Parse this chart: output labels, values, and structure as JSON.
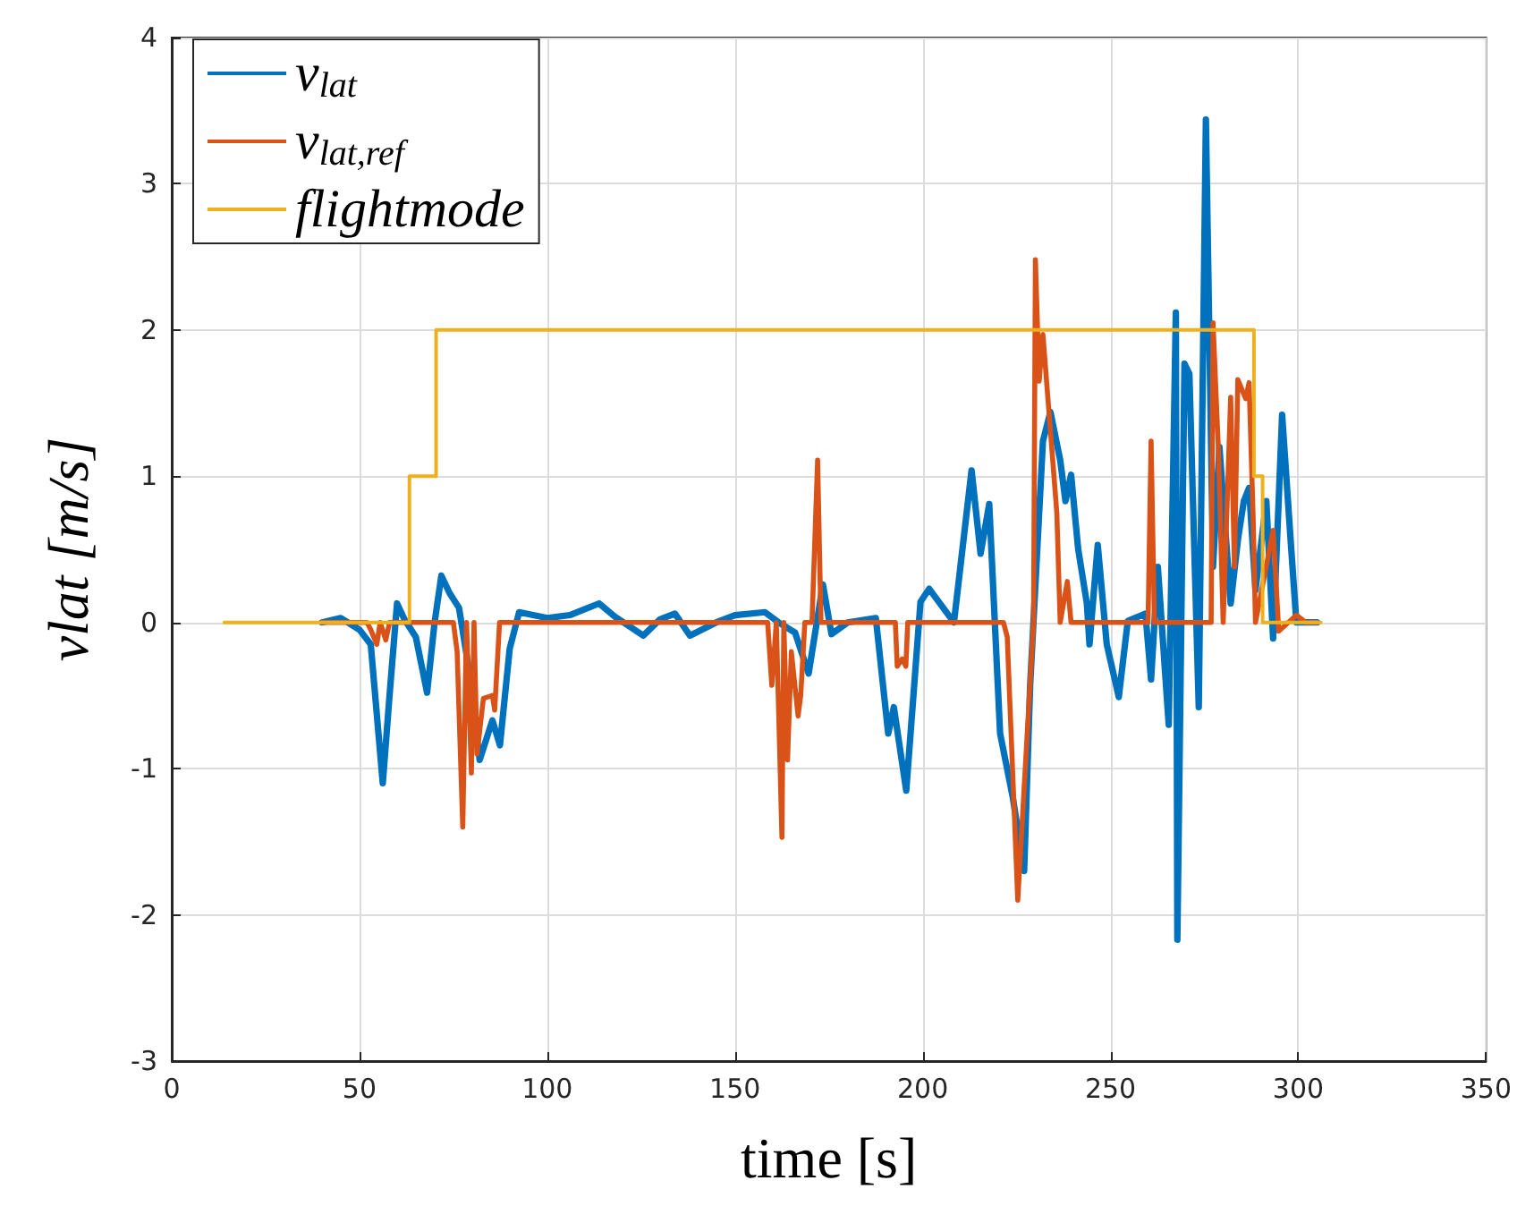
{
  "chart_data": {
    "type": "line",
    "xlabel": "time [s]",
    "ylabel": "vlat [m/s]",
    "xlim": [
      0,
      350
    ],
    "xticks": [
      0,
      50,
      100,
      150,
      200,
      250,
      300,
      350
    ],
    "ylim": [
      -3,
      4
    ],
    "yticks": [
      -3,
      -2,
      -1,
      0,
      1,
      2,
      3,
      4
    ],
    "grid": true,
    "legend": "top left",
    "marker": "none",
    "line_style": "solid",
    "series": [
      {
        "name": "v$_{lat}$",
        "color": "#0072bd",
        "x": [
          40,
          45,
          50,
          53,
          56.2,
          58,
          60,
          62,
          65,
          68,
          70,
          71.8,
          74,
          76.5,
          79,
          82,
          85.4,
          87.4,
          90,
          92.5,
          100,
          106,
          113.8,
          118,
          125.6,
          130,
          134,
          138,
          145,
          150,
          158,
          161.6,
          166,
          169.6,
          173.4,
          175.7,
          180,
          187.5,
          190.8,
          192.3,
          195.6,
          199.4,
          201.7,
          208.3,
          213,
          215.4,
          217.7,
          220.6,
          224,
          227,
          228.6,
          232,
          234,
          236.6,
          238,
          239.5,
          241.4,
          243.7,
          244.4,
          246.6,
          249,
          252.2,
          254.6,
          259.3,
          260.8,
          262.6,
          265.5,
          267.4,
          267.8,
          269.7,
          271,
          273.5,
          275.4,
          277.3,
          279,
          282,
          284,
          285.5,
          286.9,
          288.6,
          291.5,
          293.3,
          295.7,
          298,
          299.5,
          302.8,
          305
        ],
        "values": [
          0,
          0.03,
          -0.05,
          -0.15,
          -1.1,
          -0.5,
          0.13,
          0.02,
          -0.1,
          -0.48,
          0,
          0.32,
          0.2,
          0.1,
          -0.3,
          -0.94,
          -0.67,
          -0.84,
          -0.18,
          0.07,
          0.03,
          0.05,
          0.13,
          0.04,
          -0.09,
          0.02,
          0.06,
          -0.09,
          0,
          0.05,
          0.07,
          0,
          -0.07,
          -0.35,
          0.26,
          -0.08,
          0,
          0.03,
          -0.76,
          -0.58,
          -1.15,
          0.14,
          0.23,
          0,
          1.04,
          0.47,
          0.81,
          -0.76,
          -1.2,
          -1.7,
          -0.43,
          1.24,
          1.44,
          1.11,
          0.83,
          1.01,
          0.5,
          0.13,
          -0.15,
          0.53,
          -0.15,
          -0.51,
          0.01,
          0.06,
          -0.39,
          0.38,
          -0.7,
          2.12,
          -2.17,
          1.77,
          1.7,
          -0.58,
          3.44,
          0.38,
          1.2,
          0.13,
          0.58,
          0.83,
          0.92,
          0.22,
          0.83,
          -0.11,
          1.42,
          0.55,
          0,
          0,
          0
        ]
      },
      {
        "name": "v$_{lat,ref}$",
        "color": "#d95319",
        "x": [
          40,
          52,
          53,
          54.6,
          55.5,
          57,
          58,
          75,
          76,
          77.5,
          78.5,
          79.8,
          80.5,
          81.3,
          83,
          85.4,
          86,
          87.3,
          158.7,
          159.8,
          161,
          162.5,
          163,
          164,
          165,
          166.8,
          167.5,
          168.6,
          170.5,
          172,
          172.9,
          192.7,
          193.2,
          194.5,
          195.5,
          196,
          221.5,
          222.5,
          225.3,
          229.5,
          230,
          231,
          232,
          235.7,
          236.6,
          238.5,
          239.5,
          260,
          260.8,
          261.7,
          276.8,
          277.3,
          278.7,
          280,
          282,
          283,
          283.9,
          286,
          286.9,
          288,
          288.6,
          293.3,
          294.8,
          299.5,
          302,
          305
        ],
        "values": [
          0,
          0,
          -0.05,
          -0.15,
          0,
          -0.12,
          0,
          0,
          -0.2,
          -1.4,
          0,
          -1.03,
          0,
          -0.9,
          -0.52,
          -0.5,
          -0.6,
          0,
          0,
          -0.43,
          0,
          -1.47,
          0,
          -0.94,
          -0.2,
          -0.64,
          -0.5,
          0,
          0,
          1.11,
          0,
          0,
          -0.3,
          -0.25,
          -0.3,
          0,
          0,
          -0.1,
          -1.9,
          0,
          2.48,
          1.65,
          1.97,
          0.75,
          0,
          0.28,
          0,
          0,
          1.24,
          0,
          0,
          2.05,
          1.2,
          0,
          1.54,
          0.38,
          1.66,
          1.53,
          1.64,
          0.7,
          0,
          0.63,
          -0.06,
          0.05,
          0,
          0
        ]
      },
      {
        "name": "flightmode",
        "color": "#edb120",
        "x": [
          14,
          63.3,
          63.3,
          70.4,
          70.4,
          288.2,
          288.2,
          290.5,
          290.5,
          306
        ],
        "values": [
          0,
          0,
          1,
          1,
          2,
          2,
          1,
          1,
          0,
          0
        ]
      }
    ]
  }
}
